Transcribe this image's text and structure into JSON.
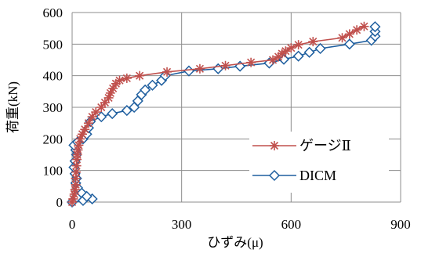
{
  "chart_data": {
    "type": "line",
    "title": "",
    "xlabel": "ひずみ(μ)",
    "ylabel": "荷重(kN)",
    "xlim": [
      0,
      900
    ],
    "ylim": [
      0,
      600
    ],
    "x_ticks": [
      "0",
      "300",
      "600",
      "900"
    ],
    "y_ticks": [
      "0",
      "100",
      "200",
      "300",
      "400",
      "500",
      "600"
    ],
    "grid": "on",
    "legend_position": "lower-right",
    "series": [
      {
        "name": "ゲージⅡ",
        "color": "#c0504d",
        "marker": "asterisk",
        "points": [
          [
            0,
            0
          ],
          [
            3,
            10
          ],
          [
            6,
            25
          ],
          [
            8,
            40
          ],
          [
            10,
            55
          ],
          [
            10,
            75
          ],
          [
            11,
            95
          ],
          [
            12,
            115
          ],
          [
            13,
            135
          ],
          [
            14,
            150
          ],
          [
            16,
            165
          ],
          [
            18,
            180
          ],
          [
            22,
            200
          ],
          [
            28,
            215
          ],
          [
            35,
            230
          ],
          [
            45,
            250
          ],
          [
            55,
            270
          ],
          [
            65,
            285
          ],
          [
            80,
            300
          ],
          [
            90,
            315
          ],
          [
            100,
            330
          ],
          [
            105,
            345
          ],
          [
            112,
            360
          ],
          [
            120,
            375
          ],
          [
            130,
            385
          ],
          [
            150,
            392
          ],
          [
            185,
            400
          ],
          [
            260,
            412
          ],
          [
            350,
            422
          ],
          [
            420,
            432
          ],
          [
            490,
            442
          ],
          [
            550,
            450
          ],
          [
            565,
            460
          ],
          [
            575,
            470
          ],
          [
            585,
            478
          ],
          [
            600,
            488
          ],
          [
            620,
            498
          ],
          [
            660,
            508
          ],
          [
            740,
            520
          ],
          [
            760,
            532
          ],
          [
            780,
            545
          ],
          [
            800,
            556
          ]
        ]
      },
      {
        "name": "DICM",
        "color": "#1f5f9f",
        "marker": "diamond",
        "points": [
          [
            0,
            0
          ],
          [
            30,
            5
          ],
          [
            55,
            10
          ],
          [
            40,
            18
          ],
          [
            25,
            30
          ],
          [
            15,
            45
          ],
          [
            10,
            60
          ],
          [
            12,
            75
          ],
          [
            8,
            90
          ],
          [
            5,
            110
          ],
          [
            8,
            130
          ],
          [
            12,
            150
          ],
          [
            10,
            165
          ],
          [
            5,
            180
          ],
          [
            15,
            190
          ],
          [
            30,
            200
          ],
          [
            40,
            215
          ],
          [
            45,
            235
          ],
          [
            50,
            255
          ],
          [
            80,
            270
          ],
          [
            110,
            280
          ],
          [
            150,
            290
          ],
          [
            170,
            300
          ],
          [
            180,
            320
          ],
          [
            190,
            340
          ],
          [
            200,
            355
          ],
          [
            220,
            370
          ],
          [
            245,
            385
          ],
          [
            255,
            400
          ],
          [
            320,
            415
          ],
          [
            400,
            422
          ],
          [
            460,
            430
          ],
          [
            540,
            440
          ],
          [
            580,
            452
          ],
          [
            620,
            462
          ],
          [
            650,
            474
          ],
          [
            680,
            486
          ],
          [
            760,
            500
          ],
          [
            820,
            512
          ],
          [
            830,
            525
          ],
          [
            830,
            540
          ],
          [
            830,
            555
          ]
        ]
      }
    ]
  }
}
